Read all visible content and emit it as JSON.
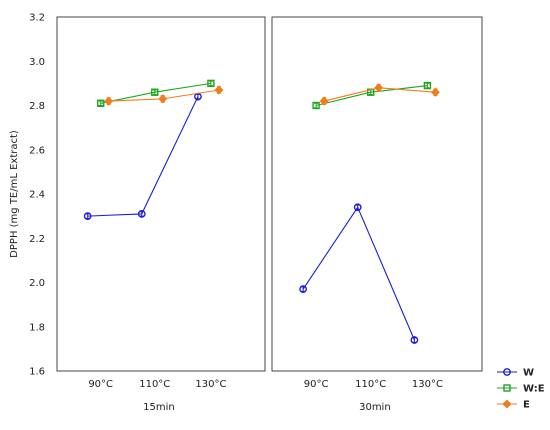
{
  "chart_data": {
    "type": "line",
    "ylabel": "DPPH (mg TE/mL Extract)",
    "ylim": [
      1.6,
      3.2
    ],
    "yticks": [
      1.6,
      1.8,
      2.0,
      2.2,
      2.4,
      2.6,
      2.8,
      3.0,
      3.2
    ],
    "ytick_labels": [
      "1.6",
      "1.8",
      "2.0",
      "2.2",
      "2.4",
      "2.6",
      "2.8",
      "3.0",
      "3.2"
    ],
    "categories": [
      "90°C",
      "110°C",
      "130°C"
    ],
    "grid": true,
    "legend_position": "bottom-right",
    "panels": [
      {
        "label": "15min",
        "series": [
          {
            "name": "W",
            "values": [
              2.3,
              2.31,
              2.84
            ],
            "errors": [
              0.01,
              0.01,
              0.01
            ],
            "color": "#1f1fd6",
            "marker": "circle"
          },
          {
            "name": "W:E",
            "values": [
              2.81,
              2.86,
              2.9
            ],
            "errors": [
              0.01,
              0.01,
              0.01
            ],
            "color": "#1fa51f",
            "marker": "square"
          },
          {
            "name": "E",
            "values": [
              2.82,
              2.83,
              2.87
            ],
            "errors": [
              0.015,
              0.015,
              0.015
            ],
            "color": "#f07d1a",
            "marker": "diamond"
          }
        ]
      },
      {
        "label": "30min",
        "series": [
          {
            "name": "W",
            "values": [
              1.97,
              2.34,
              1.74
            ],
            "errors": [
              0.01,
              0.01,
              0.01
            ],
            "color": "#1f1fd6",
            "marker": "circle"
          },
          {
            "name": "W:E",
            "values": [
              2.8,
              2.86,
              2.89
            ],
            "errors": [
              0.01,
              0.01,
              0.01
            ],
            "color": "#1fa51f",
            "marker": "square"
          },
          {
            "name": "E",
            "values": [
              2.82,
              2.88,
              2.86
            ],
            "errors": [
              0.015,
              0.015,
              0.015
            ],
            "color": "#f07d1a",
            "marker": "diamond"
          }
        ]
      }
    ],
    "legend": [
      {
        "name": "W",
        "color": "#1f1fd6",
        "marker": "circle"
      },
      {
        "name": "W:E",
        "color": "#1fa51f",
        "marker": "square"
      },
      {
        "name": "E",
        "color": "#f07d1a",
        "marker": "diamond"
      }
    ]
  }
}
